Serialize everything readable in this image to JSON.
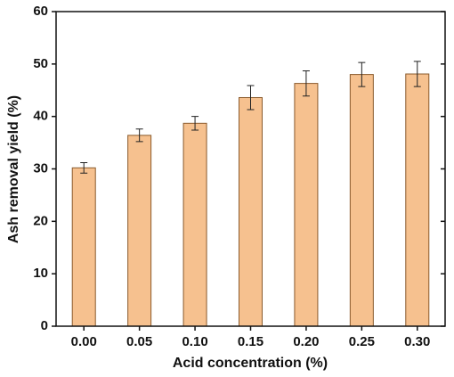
{
  "chart_data": {
    "type": "bar",
    "x_label": "Acid concentration (%)",
    "y_label": "Ash removal yield (%)",
    "categories": [
      "0.00",
      "0.05",
      "0.10",
      "0.15",
      "0.20",
      "0.25",
      "0.30"
    ],
    "values": [
      30.2,
      36.4,
      38.7,
      43.6,
      46.3,
      48.0,
      48.1
    ],
    "errors": [
      1.0,
      1.2,
      1.3,
      2.3,
      2.4,
      2.3,
      2.4
    ],
    "color": "#f6c18f",
    "ylim": [
      0,
      60
    ],
    "yticks": [
      0,
      10,
      20,
      30,
      40,
      50,
      60
    ]
  }
}
